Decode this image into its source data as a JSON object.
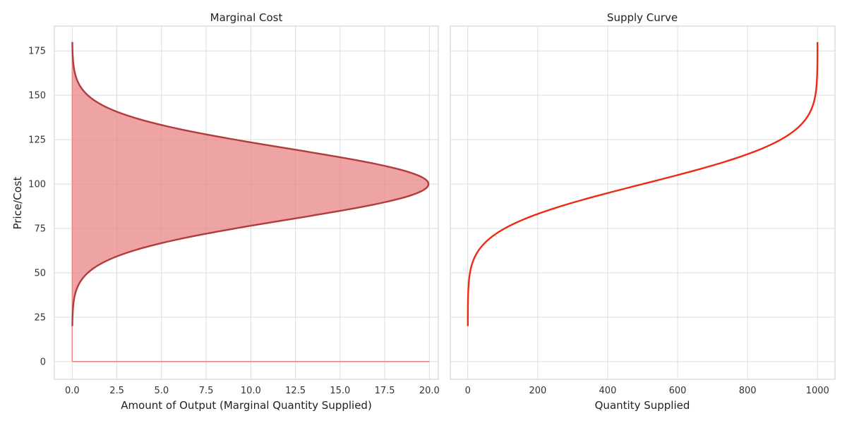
{
  "chart_data": [
    {
      "type": "area",
      "title": "Marginal Cost",
      "xlabel": "Amount of Output (Marginal Quantity Supplied)",
      "ylabel": "Price/Cost",
      "xlim": [
        -1,
        20.5
      ],
      "ylim": [
        -10,
        189
      ],
      "x_ticks": [
        "0.0",
        "2.5",
        "5.0",
        "7.5",
        "10.0",
        "12.5",
        "15.0",
        "17.5",
        "20.0"
      ],
      "y_ticks": [
        "0",
        "25",
        "50",
        "75",
        "100",
        "125",
        "150",
        "175"
      ],
      "grid": true,
      "curve": {
        "shape": "gaussian",
        "peak_quantity": 19.95,
        "peak_price": 100,
        "std_dev": 20,
        "price_range": [
          20,
          180
        ]
      },
      "baseline": {
        "price": 0,
        "x_range": [
          0,
          20
        ]
      },
      "line_color": "#b33b3b",
      "fill_color": "#e88585"
    },
    {
      "type": "line",
      "title": "Supply Curve",
      "xlabel": "Quantity Supplied",
      "ylabel": "",
      "xlim": [
        -50,
        1050
      ],
      "ylim": [
        -10,
        189
      ],
      "x_ticks": [
        "0",
        "200",
        "400",
        "600",
        "800",
        "1000"
      ],
      "y_ticks": [],
      "grid": true,
      "curve": {
        "shape": "normal-cdf",
        "total_quantity": 1000,
        "mean_price": 100,
        "std_dev": 20,
        "price_range": [
          20,
          180
        ]
      },
      "line_color": "#ee2a12"
    }
  ]
}
